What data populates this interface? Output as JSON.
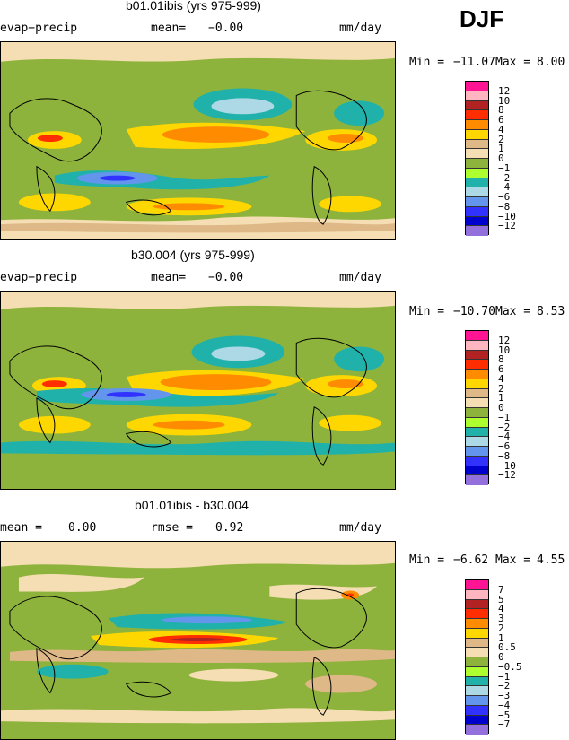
{
  "season_label": "DJF",
  "panels": [
    {
      "title": "b01.01ibis (yrs 975-999)",
      "variable": "evap−precip",
      "mean_label": "mean=",
      "mean_value": "−0.00",
      "units": "mm/day",
      "min_label": "Min =",
      "min_value": "−11.07",
      "max_label": "Max =",
      "max_value": "8.00",
      "levels": [
        "12",
        "10",
        "8",
        "6",
        "4",
        "2",
        "1",
        "0",
        "−1",
        "−2",
        "−4",
        "−6",
        "−8",
        "−10",
        "−12"
      ]
    },
    {
      "title": "b30.004 (yrs 975-999)",
      "variable": "evap−precip",
      "mean_label": "mean=",
      "mean_value": "−0.00",
      "units": "mm/day",
      "min_label": "Min =",
      "min_value": "−10.70",
      "max_label": "Max =",
      "max_value": "8.53",
      "levels": [
        "12",
        "10",
        "8",
        "6",
        "4",
        "2",
        "1",
        "0",
        "−1",
        "−2",
        "−4",
        "−6",
        "−8",
        "−10",
        "−12"
      ]
    },
    {
      "title": "b01.01ibis - b30.004",
      "mean_label": "mean =",
      "mean_value": "0.00",
      "rmse_label": "rmse =",
      "rmse_value": "0.92",
      "units": "mm/day",
      "min_label": "Min =",
      "min_value": "−6.62",
      "max_label": "Max =",
      "max_value": "4.55",
      "levels": [
        "7",
        "5",
        "4",
        "3",
        "2",
        "1",
        "0.5",
        "0",
        "−0.5",
        "−1",
        "−2",
        "−3",
        "−4",
        "−5",
        "−7"
      ]
    }
  ],
  "colorbar_colors": [
    "#ff1493",
    "#ffb6c1",
    "#b22222",
    "#ff2d00",
    "#ff8c00",
    "#ffd700",
    "#deb887",
    "#f5deb3",
    "#8db33c",
    "#adff2f",
    "#20b2aa",
    "#add8e6",
    "#6495ed",
    "#3232ff",
    "#0000cd",
    "#9370db"
  ]
}
